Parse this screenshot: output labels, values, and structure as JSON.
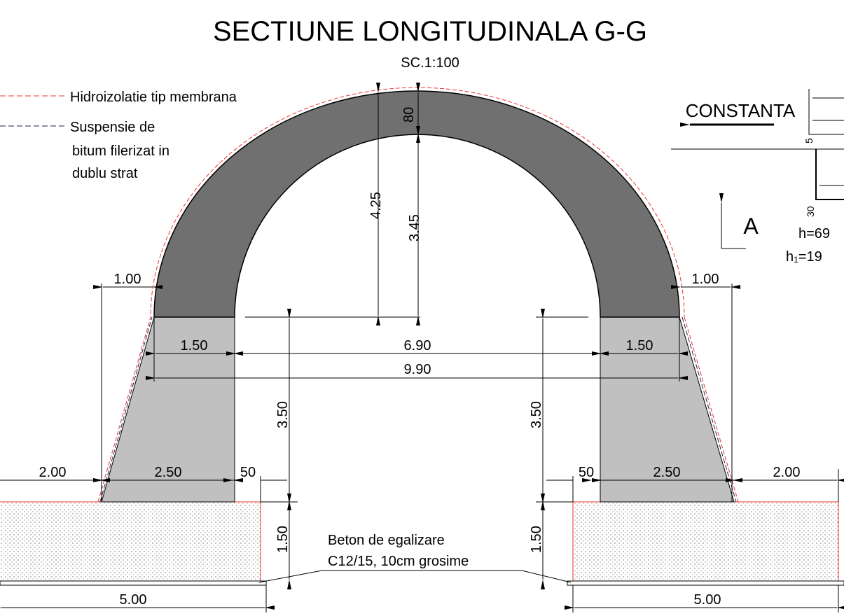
{
  "title": "SECTIUNE LONGITUDINALA G-G",
  "scale": "SC.1:100",
  "legend": {
    "membrane": "Hidroizolatie tip membrana",
    "bitumen": [
      "Suspensie de",
      "bitum filerizat in",
      "dublu strat"
    ]
  },
  "direction": "CONSTANTA",
  "section_mark": "A",
  "detail": {
    "dim_top": "5",
    "dim_bottom": "30",
    "h": "h=69",
    "h1": "h₁=19"
  },
  "dimensions": {
    "arch_thickness": "80",
    "crown_height_outer": "4.25",
    "crown_height_inner": "3.45",
    "offset_left": "1.00",
    "offset_right": "1.00",
    "wall_top_left": "1.50",
    "wall_top_right": "1.50",
    "inner_span": "6.90",
    "total_span": "9.90",
    "wall_height_left": "3.50",
    "wall_height_right": "3.50",
    "ledge_left": "2.00",
    "ledge_right": "2.00",
    "wall_base_left": "2.50",
    "wall_base_right": "2.50",
    "step_left": "50",
    "step_right": "50",
    "footing_height_left": "1.50",
    "footing_height_right": "1.50",
    "footing_width_left": "5.00",
    "footing_width_right": "5.00"
  },
  "note": [
    "Beton de egalizare",
    "C12/15, 10cm grosime"
  ]
}
